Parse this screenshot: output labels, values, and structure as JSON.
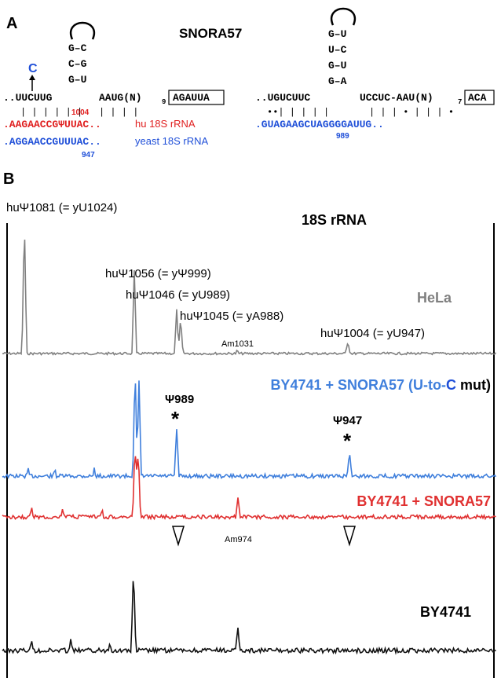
{
  "panel_a": {
    "label": "A",
    "title": "SNORA57",
    "left": {
      "stem_top": "G–C",
      "stem_mid": "C–G",
      "stem_bottom": "G–U",
      "mutation": "C",
      "guide": "..UUCUUG",
      "guide2": "AAUG(N)",
      "n_count": "9",
      "box": "AGAUUA",
      "pairs": "| | | | | |",
      "pairs2": "| | | |",
      "pos": "1004",
      "hu_seq": ".AAGAACCGΨUUAC..",
      "hu_label": "hu 18S rRNA",
      "yeast_seq": ".AGGAACCGUUUAC..",
      "yeast_label": "yeast 18S rRNA",
      "yeast_pos": "947"
    },
    "right": {
      "stem1": "G–U",
      "stem2": "U–C",
      "stem3": "G–U",
      "stem4": "G–A",
      "guide": "..UGUCUUC",
      "guide2": "UCCUC-AAU(N)",
      "n_count": "7",
      "box": "ACA",
      "pairs": "••| | | | |",
      "pairs2": "| | | • |   | | •",
      "yeast_seq": ".GUAGAAGCUAGGGGAUUG..",
      "yeast_pos": "989"
    }
  },
  "panel_b": {
    "label": "B",
    "title": "18S rRNA",
    "peaks": {
      "p1081": "huΨ1081 (= yU1024)",
      "p1056": "huΨ1056 (= yΨ999)",
      "p1046": "huΨ1046 (= yU989)",
      "p1045": "huΨ1045 (= yA988)",
      "p1004": "huΨ1004 (= yU947)",
      "am1031": "Am1031",
      "psi989": "Ψ989",
      "psi947": "Ψ947",
      "am974": "Am974",
      "star": "*"
    },
    "tracks": [
      {
        "name": "HeLa",
        "color": "#808080"
      },
      {
        "name_pre": "BY4741 + SNORA57 (U-to-",
        "name_c": "C",
        "name_post": " mut)",
        "color": "#3f7fdc"
      },
      {
        "name": "BY4741 + SNORA57",
        "color": "#e03030"
      },
      {
        "name": "BY4741",
        "color": "#111111"
      }
    ],
    "colors": {
      "hela": "#808080",
      "mut": "#3f7fdc",
      "snora": "#e03030",
      "wt": "#111111",
      "blue_text": "#1f4fd8",
      "red_text": "#e02020"
    }
  }
}
